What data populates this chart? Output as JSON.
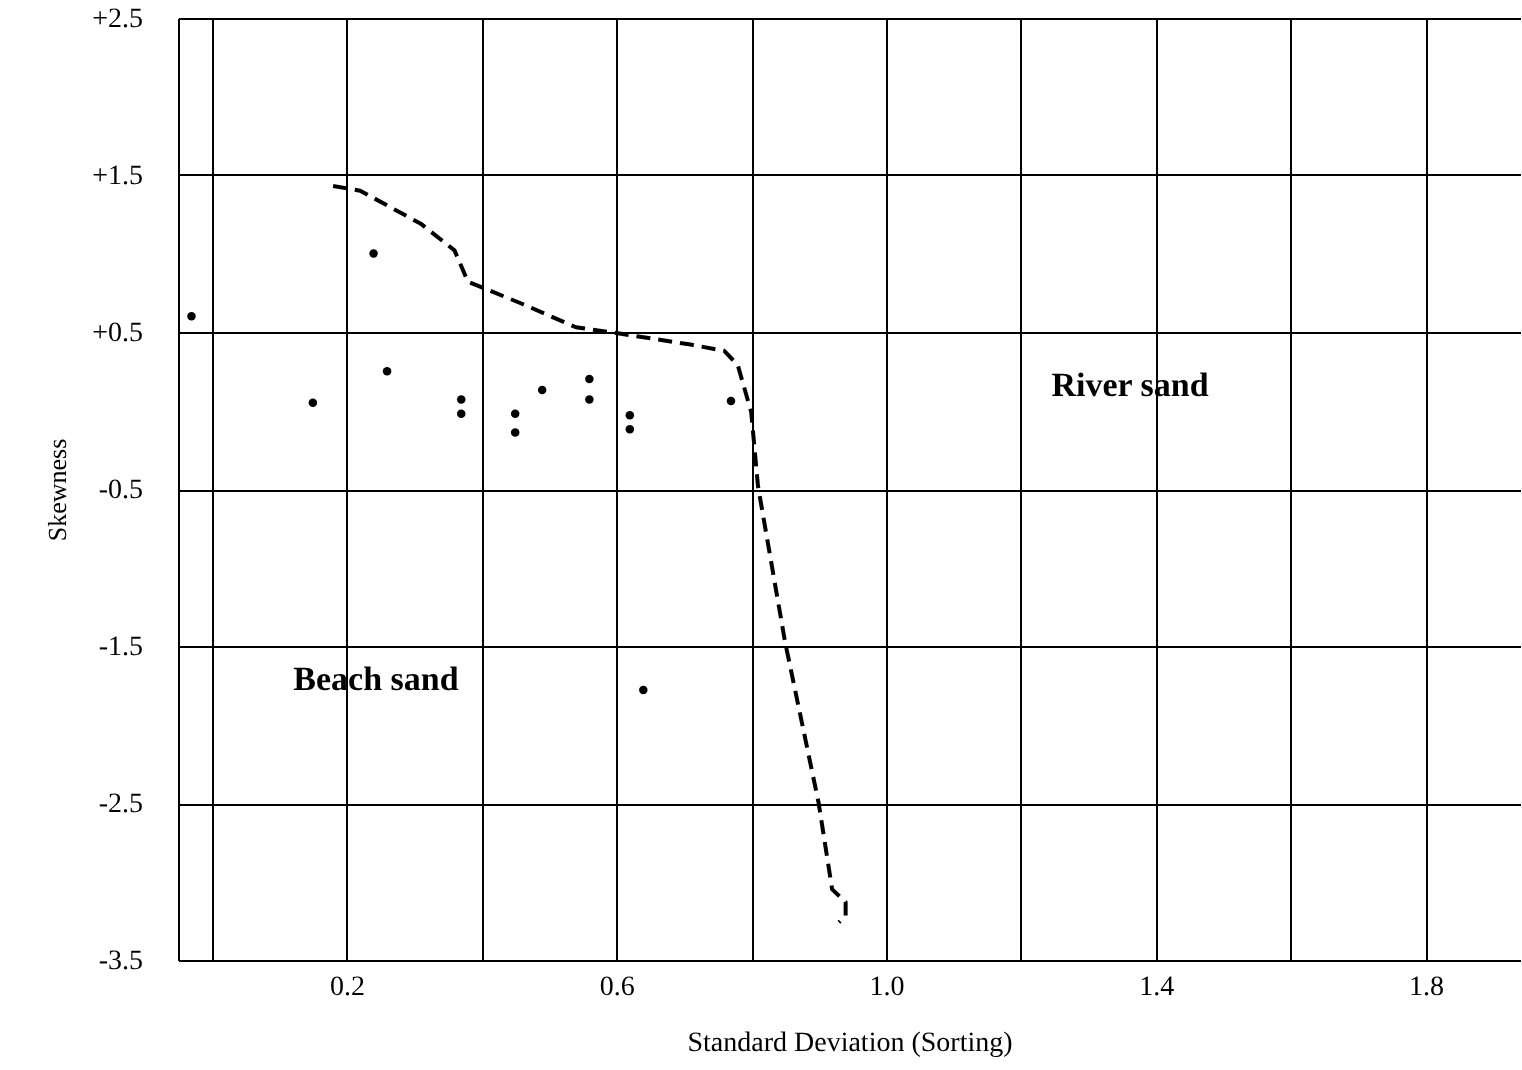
{
  "chart_data": {
    "type": "scatter",
    "xlabel": "Standard Deviation (Sorting)",
    "ylabel": "Skewness",
    "xlim": [
      -0.05,
      1.94
    ],
    "ylim": [
      -3.5,
      2.5
    ],
    "xticks": [
      {
        "value": 0,
        "label": null
      },
      0.2,
      {
        "value": 0.4,
        "label": null
      },
      0.6,
      {
        "value": 0.8,
        "label": null
      },
      {
        "value": 1,
        "label": "1.0"
      },
      {
        "value": 1.2,
        "label": null
      },
      1.4,
      {
        "value": 1.6,
        "label": null
      },
      1.8
    ],
    "yticks": [
      {
        "value": 2.5,
        "label": "+2.5"
      },
      {
        "value": 1.5,
        "label": "+1.5"
      },
      {
        "value": 0.5,
        "label": "+0.5"
      },
      -0.5,
      -1.5,
      -2.5,
      -3.5
    ],
    "grid": true,
    "series": [
      {
        "type": "scatter",
        "color": "#000000",
        "marker": "circle",
        "x": [
          -0.03,
          0.15,
          0.24,
          0.26,
          0.37,
          0.37,
          0.45,
          0.45,
          0.49,
          0.56,
          0.56,
          0.62,
          0.62,
          0.77,
          0.64
        ],
        "values": [
          0.6,
          0.05,
          1.0,
          0.25,
          0.07,
          -0.02,
          -0.02,
          -0.14,
          0.13,
          0.2,
          0.07,
          -0.03,
          -0.12,
          0.06,
          -1.78
        ]
      },
      {
        "type": "line",
        "color": "#000000",
        "line_style": "dashed",
        "x": [
          0.18,
          0.22,
          0.31,
          0.36,
          0.38,
          0.46,
          0.54,
          0.59,
          0.71,
          0.76,
          0.78,
          0.8,
          0.81,
          0.85,
          0.9,
          0.92,
          0.94,
          0.94,
          0.93
        ],
        "values": [
          1.43,
          1.4,
          1.19,
          1.02,
          0.82,
          0.68,
          0.53,
          0.5,
          0.42,
          0.38,
          0.29,
          -0.01,
          -0.48,
          -1.47,
          -2.5,
          -3.05,
          -3.13,
          -3.22,
          -3.26
        ]
      }
    ],
    "annotations": [
      "River sand",
      "Beach sand"
    ]
  }
}
